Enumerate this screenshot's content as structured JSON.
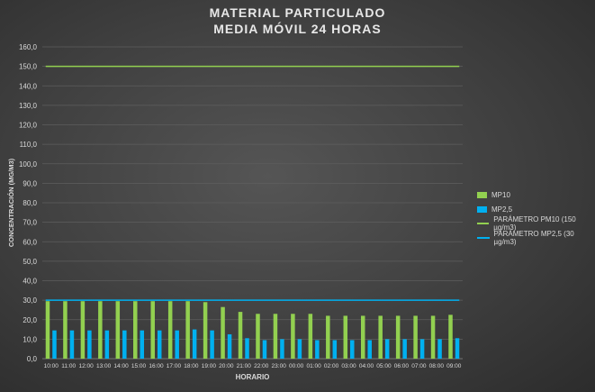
{
  "chart_data": {
    "type": "bar",
    "title": [
      "MATERIAL PARTICULADO",
      "MEDIA MÓVIL 24 HORAS"
    ],
    "xlabel": "HORARIO",
    "ylabel": "CONCENTRACIÓN (MG/M3)",
    "ylim": [
      0,
      160
    ],
    "yticks": [
      "0,0",
      "10,0",
      "20,0",
      "30,0",
      "40,0",
      "50,0",
      "60,0",
      "70,0",
      "80,0",
      "90,0",
      "100,0",
      "110,0",
      "120,0",
      "130,0",
      "140,0",
      "150,0",
      "160,0"
    ],
    "categories": [
      "10:00",
      "11:00",
      "12:00",
      "13:00",
      "14:00",
      "15:00",
      "16:00",
      "17:00",
      "18:00",
      "19:00",
      "20:00",
      "21:00",
      "22:00",
      "23:00",
      "00:00",
      "01:00",
      "02:00",
      "03:00",
      "04:00",
      "05:00",
      "06:00",
      "07:00",
      "08:00",
      "09:00"
    ],
    "series": [
      {
        "name": "MP10",
        "kind": "bar",
        "color": "#92d050",
        "values": [
          29.5,
          29.5,
          29.5,
          29.5,
          29.5,
          29.5,
          29.5,
          29.5,
          29.5,
          29,
          26.5,
          24,
          23,
          23,
          23,
          23,
          22,
          22,
          22,
          22,
          22,
          22,
          22,
          22.5
        ]
      },
      {
        "name": "MP2,5",
        "kind": "bar",
        "color": "#00b0f0",
        "values": [
          14.5,
          14.5,
          14.5,
          14.5,
          14.5,
          14.5,
          14.5,
          14.5,
          15,
          14.5,
          12.5,
          10.5,
          9.5,
          10,
          10,
          9.5,
          9.5,
          9.5,
          9.5,
          10,
          10,
          10,
          10,
          10.5
        ]
      },
      {
        "name": "PARÁMETRO PM10 (150 µg/m3)",
        "kind": "line",
        "color": "#92d050",
        "value": 150
      },
      {
        "name": "PARÁMETRO MP2,5 (30 µg/m3)",
        "kind": "line",
        "color": "#00b0f0",
        "value": 30
      }
    ],
    "legend_position": "right",
    "grid": true
  }
}
